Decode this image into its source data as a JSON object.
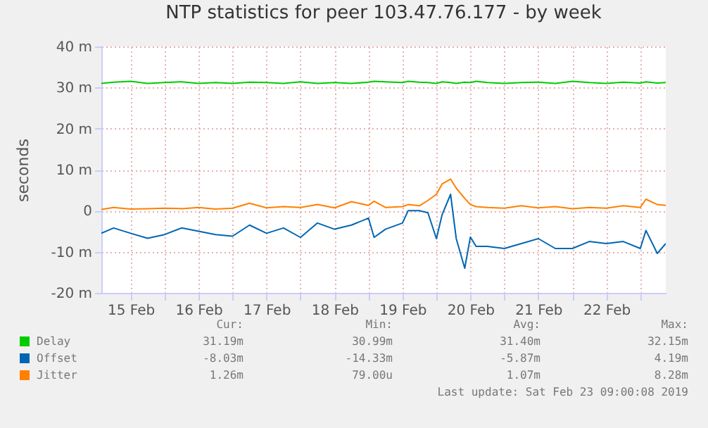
{
  "chart_data": {
    "type": "line",
    "title": "NTP statistics for peer 103.47.76.177 - by week",
    "ylabel": "seconds",
    "x": [
      "2019-02-15T01:40",
      "2019-02-15T06:00",
      "2019-02-15T12:00",
      "2019-02-15T18:00",
      "2019-02-16T00:00",
      "2019-02-16T06:00",
      "2019-02-16T12:00",
      "2019-02-16T18:00",
      "2019-02-17T00:00",
      "2019-02-17T06:00",
      "2019-02-17T12:00",
      "2019-02-17T18:00",
      "2019-02-18T00:00",
      "2019-02-18T06:00",
      "2019-02-18T12:00",
      "2019-02-18T18:00",
      "2019-02-19T00:00",
      "2019-02-19T02:00",
      "2019-02-19T06:00",
      "2019-02-19T12:00",
      "2019-02-19T14:00",
      "2019-02-19T18:00",
      "2019-02-19T21:00",
      "2019-02-20T00:00",
      "2019-02-20T02:00",
      "2019-02-20T05:00",
      "2019-02-20T07:00",
      "2019-02-20T10:00",
      "2019-02-20T12:00",
      "2019-02-20T14:00",
      "2019-02-20T18:00",
      "2019-02-21T00:00",
      "2019-02-21T06:00",
      "2019-02-21T12:00",
      "2019-02-21T18:00",
      "2019-02-22T00:00",
      "2019-02-22T06:00",
      "2019-02-22T12:00",
      "2019-02-22T18:00",
      "2019-02-23T00:00",
      "2019-02-23T02:00",
      "2019-02-23T06:00",
      "2019-02-23T09:00"
    ],
    "series": [
      {
        "name": "Delay",
        "color": "#00cc00",
        "values": [
          31,
          31.3,
          31.5,
          31,
          31.2,
          31.4,
          31,
          31.2,
          31,
          31.3,
          31.2,
          31,
          31.4,
          31,
          31.2,
          31,
          31.3,
          31.5,
          31.4,
          31.2,
          31.5,
          31.3,
          31.2,
          31,
          31.4,
          31.2,
          31,
          31.3,
          31.2,
          31.5,
          31.2,
          31,
          31.2,
          31.3,
          31,
          31.5,
          31.2,
          31,
          31.3,
          31.1,
          31.4,
          31.1,
          31.2
        ]
      },
      {
        "name": "Offset",
        "color": "#0066b3",
        "values": [
          -5.5,
          -4.2,
          -5.5,
          -6.7,
          -5.8,
          -4.2,
          -5,
          -5.8,
          -6.2,
          -3.5,
          -5.5,
          -4.2,
          -6.5,
          -3,
          -4.5,
          -3.5,
          -1.8,
          -6.5,
          -4.5,
          -3,
          0,
          0,
          -0.5,
          -6.8,
          -1,
          4,
          -6.8,
          -14,
          -6.4,
          -8.7,
          -8.7,
          -9.2,
          -8,
          -6.8,
          -9.2,
          -9.2,
          -7.5,
          -8,
          -7.5,
          -9.2,
          -4.8,
          -10.4,
          -8
        ]
      },
      {
        "name": "Jitter",
        "color": "#ff8000",
        "values": [
          0.3,
          0.8,
          0.4,
          0.5,
          0.6,
          0.5,
          0.8,
          0.4,
          0.6,
          1.8,
          0.7,
          1,
          0.8,
          1.5,
          0.7,
          2.2,
          1.3,
          2.3,
          0.8,
          1,
          1.5,
          1.2,
          2.5,
          4,
          6.5,
          7.7,
          5.5,
          3,
          1.5,
          1,
          0.8,
          0.6,
          1.2,
          0.7,
          1,
          0.5,
          0.8,
          0.6,
          1.2,
          0.8,
          2.8,
          1.5,
          1.3
        ]
      }
    ],
    "xlim": [
      "2019-02-15T01:40",
      "2019-02-23T09:00"
    ],
    "xticks": [
      {
        "value": "2019-02-15T12:00",
        "label": "15 Feb"
      },
      {
        "value": "2019-02-16T00:00",
        "label": null
      },
      {
        "value": "2019-02-16T12:00",
        "label": "16 Feb"
      },
      {
        "value": "2019-02-17T00:00",
        "label": null
      },
      {
        "value": "2019-02-17T12:00",
        "label": "17 Feb"
      },
      {
        "value": "2019-02-18T00:00",
        "label": null
      },
      {
        "value": "2019-02-18T12:00",
        "label": "18 Feb"
      },
      {
        "value": "2019-02-19T00:00",
        "label": null
      },
      {
        "value": "2019-02-19T12:00",
        "label": "19 Feb"
      },
      {
        "value": "2019-02-20T00:00",
        "label": null
      },
      {
        "value": "2019-02-20T12:00",
        "label": "20 Feb"
      },
      {
        "value": "2019-02-21T00:00",
        "label": null
      },
      {
        "value": "2019-02-21T12:00",
        "label": "21 Feb"
      },
      {
        "value": "2019-02-22T00:00",
        "label": null
      },
      {
        "value": "2019-02-22T12:00",
        "label": "22 Feb"
      },
      {
        "value": "2019-02-23T00:00",
        "label": null
      }
    ],
    "ylim": [
      -20,
      40
    ],
    "yticks": [
      {
        "value": -20,
        "label": "-20 m"
      },
      {
        "value": -10,
        "label": "-10 m"
      },
      {
        "value": 0,
        "label": "0"
      },
      {
        "value": 10,
        "label": "10 m"
      },
      {
        "value": 20,
        "label": "20 m"
      },
      {
        "value": 30,
        "label": "30 m"
      },
      {
        "value": 40,
        "label": "40 m"
      }
    ],
    "grid": true,
    "legend": "bottom",
    "annotations": [
      "Cur:",
      "Min:",
      "Avg:",
      "Max:",
      "31.19m",
      "30.99m",
      "31.40m",
      "32.15m",
      "-8.03m",
      "-14.33m",
      "-5.87m",
      "4.19m",
      "1.26m",
      "79.00u",
      "1.07m",
      "8.28m",
      "Last update: Sat Feb 23 09:00:08 2019"
    ]
  }
}
